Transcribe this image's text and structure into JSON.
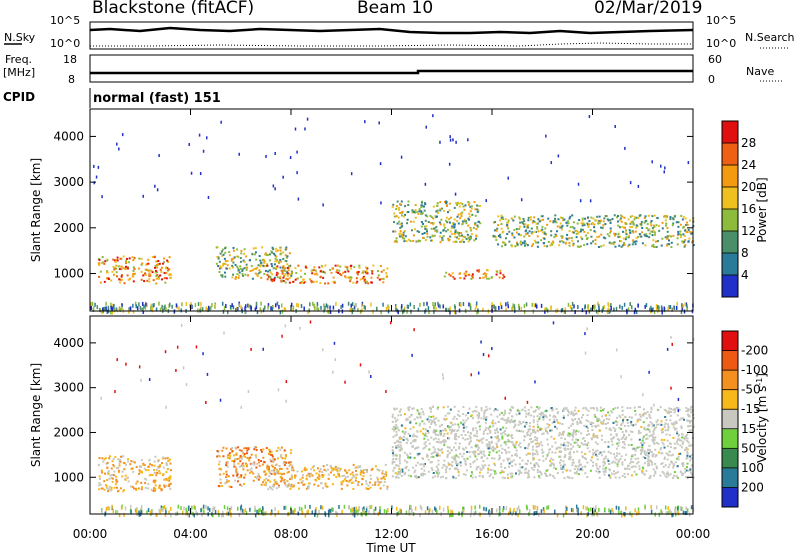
{
  "header": {
    "site": "Blackstone (fitACF)",
    "beam": "Beam 10",
    "date": "02/Mar/2019"
  },
  "noise_panel": {
    "left_label": "N.Sky",
    "right_label": "N.Search",
    "ytick_top": "10^5",
    "ytick_bottom": "10^0"
  },
  "freq_panel": {
    "left_label_1": "Freq.",
    "left_label_2": "[MHz]",
    "left_tick_top": "18",
    "left_tick_bottom": "8",
    "right_label": "Nave",
    "right_tick_top": "60",
    "right_tick_bottom": "0"
  },
  "cpid": {
    "label": "CPID",
    "value": "normal (fast) 151"
  },
  "chart_data": [
    {
      "type": "heatmap",
      "title": "",
      "xlabel": "",
      "ylabel": "Slant Range [km]",
      "xlim": [
        0,
        24
      ],
      "ylim": [
        180,
        4600
      ],
      "yticks": [
        "1000",
        "2000",
        "3000",
        "4000"
      ],
      "colorbar_label": "Power [dB]",
      "colorbar_ticks": [
        "4",
        "8",
        "12",
        "16",
        "20",
        "24",
        "28"
      ],
      "colors": [
        "#2030c8",
        "#2a7a9a",
        "#4a8f6a",
        "#8dbb3c",
        "#f0c020",
        "#f39a10",
        "#ee6014",
        "#e01010"
      ],
      "scatter_regions": [
        {
          "x": [
            0.3,
            3.2
          ],
          "y": [
            800,
            1400
          ],
          "value": "high"
        },
        {
          "x": [
            5.0,
            8.0
          ],
          "y": [
            900,
            1600
          ],
          "value": "medium"
        },
        {
          "x": [
            7.0,
            11.8
          ],
          "y": [
            800,
            1200
          ],
          "value": "high"
        },
        {
          "x": [
            12.0,
            15.5
          ],
          "y": [
            1700,
            2600
          ],
          "value": "medium"
        },
        {
          "x": [
            14.0,
            16.5
          ],
          "y": [
            900,
            1100
          ],
          "value": "high"
        },
        {
          "x": [
            16.0,
            24.0
          ],
          "y": [
            1600,
            2300
          ],
          "value": "medium"
        }
      ]
    },
    {
      "type": "heatmap",
      "title": "",
      "xlabel": "Time UT",
      "ylabel": "Slant Range [km]",
      "xlim": [
        0,
        24
      ],
      "ylim": [
        180,
        4600
      ],
      "xticks": [
        "00:00",
        "04:00",
        "08:00",
        "12:00",
        "16:00",
        "20:00",
        "00:00"
      ],
      "yticks": [
        "1000",
        "2000",
        "3000",
        "4000"
      ],
      "colorbar_label": "Velocity [m s",
      "colorbar_label_sup": "-1",
      "colorbar_label_end": "]",
      "colorbar_ticks": [
        "200",
        "100",
        "50",
        "15",
        "-15",
        "-50",
        "-100",
        "-200"
      ],
      "colors": [
        "#2030c8",
        "#2a7a9a",
        "#3a8a50",
        "#6ed03a",
        "#c8c8c0",
        "#f6b81a",
        "#f39020",
        "#ee5a14",
        "#e01010"
      ],
      "scatter_regions": [
        {
          "x": [
            0.3,
            3.2
          ],
          "y": [
            700,
            1500
          ],
          "value": "-50"
        },
        {
          "x": [
            5.0,
            8.0
          ],
          "y": [
            800,
            1700
          ],
          "value": "-100"
        },
        {
          "x": [
            7.0,
            11.8
          ],
          "y": [
            750,
            1300
          ],
          "value": "-50"
        },
        {
          "x": [
            12.0,
            24.0
          ],
          "y": [
            1000,
            2600
          ],
          "value": "0"
        }
      ]
    }
  ]
}
